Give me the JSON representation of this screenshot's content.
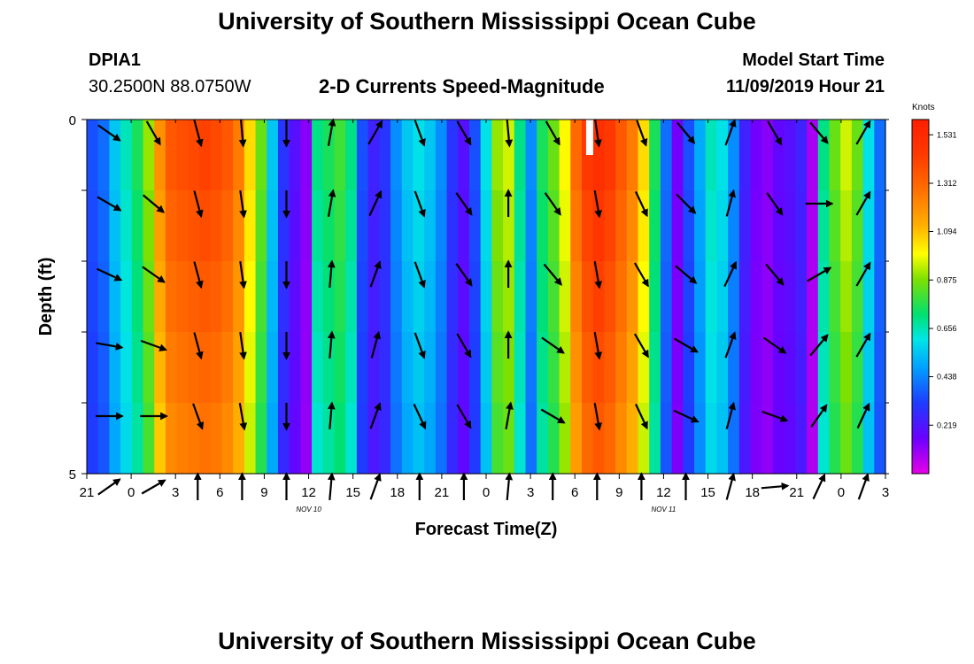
{
  "header": {
    "title": "University of Southern Mississippi Ocean Cube",
    "station_id": "DPIA1",
    "station_coords": "30.2500N 88.0750W",
    "subtitle": "2-D Currents Speed-Magnitude",
    "model_label": "Model Start Time",
    "model_time": "11/09/2019 Hour 21"
  },
  "footer": {
    "title": "University of Southern Mississippi Ocean Cube"
  },
  "chart_data": {
    "type": "heatmap",
    "title": "2-D Currents Speed-Magnitude",
    "xlabel": "Forecast Time(Z)",
    "ylabel": "Depth (ft)",
    "x_ticks": [
      "21",
      "0",
      "3",
      "6",
      "9",
      "12",
      "15",
      "18",
      "21",
      "0",
      "3",
      "6",
      "9",
      "12",
      "15",
      "18",
      "21",
      "0",
      "3"
    ],
    "date_labels": [
      {
        "label": "NOV 10",
        "hour": 15
      },
      {
        "label": "NOV 11",
        "hour": 39
      }
    ],
    "y_ticks": [
      "0",
      "5"
    ],
    "ylim": [
      0,
      5
    ],
    "xlim_hours": [
      0,
      54
    ],
    "colorbar": {
      "unit": "Knots",
      "ticks": [
        "1.531",
        "1.312",
        "1.094",
        "0.875",
        "0.656",
        "0.438",
        "0.219"
      ],
      "range": [
        0,
        1.6
      ]
    },
    "depth_bins": 5,
    "speed_by_hour": [
      0.35,
      0.4,
      0.55,
      0.65,
      0.75,
      0.9,
      1.2,
      1.35,
      1.38,
      1.4,
      1.42,
      1.4,
      1.35,
      1.25,
      1.05,
      0.85,
      0.55,
      0.3,
      0.2,
      0.12,
      0.7,
      0.75,
      0.8,
      0.7,
      0.35,
      0.25,
      0.3,
      0.45,
      0.55,
      0.6,
      0.55,
      0.45,
      0.3,
      0.2,
      0.35,
      0.6,
      0.9,
      0.95,
      0.7,
      0.45,
      0.75,
      0.85,
      1.0,
      1.3,
      1.45,
      1.5,
      1.45,
      1.35,
      1.25,
      1.05,
      0.75,
      0.4,
      0.15,
      0.35,
      0.5,
      0.65,
      0.6,
      0.45,
      0.25,
      0.15,
      0.12,
      0.18,
      0.2,
      0.25,
      0.08,
      0.7,
      0.85,
      0.95,
      0.85,
      0.6,
      0.4
    ],
    "missing_cell": {
      "hour": 34,
      "depth_bin": 0
    },
    "arrow_hours": [
      1.5,
      4.5,
      7.5,
      10.5,
      13.5,
      16.5,
      19.5,
      22.5,
      25.5,
      28.5,
      31.5,
      34.5,
      37.5,
      40.5,
      43.5,
      46.5,
      49.5,
      52.5
    ],
    "arrow_directions_deg_by_depth": [
      [
        125,
        150,
        165,
        175,
        180,
        10,
        30,
        160,
        150,
        175,
        150,
        172,
        160,
        140,
        20,
        150,
        140,
        30
      ],
      [
        120,
        130,
        165,
        172,
        180,
        10,
        25,
        160,
        145,
        0,
        145,
        170,
        155,
        135,
        15,
        145,
        90,
        30
      ],
      [
        115,
        125,
        165,
        172,
        180,
        5,
        20,
        160,
        145,
        0,
        140,
        170,
        150,
        130,
        25,
        140,
        60,
        30
      ],
      [
        100,
        110,
        165,
        172,
        180,
        5,
        15,
        160,
        150,
        0,
        125,
        170,
        150,
        120,
        20,
        125,
        40,
        30
      ],
      [
        90,
        90,
        160,
        170,
        180,
        5,
        20,
        155,
        150,
        10,
        120,
        170,
        155,
        115,
        15,
        110,
        35,
        25
      ],
      [
        55,
        60,
        0,
        0,
        0,
        5,
        20,
        0,
        0,
        5,
        0,
        0,
        0,
        0,
        15,
        85,
        25,
        20
      ]
    ]
  }
}
